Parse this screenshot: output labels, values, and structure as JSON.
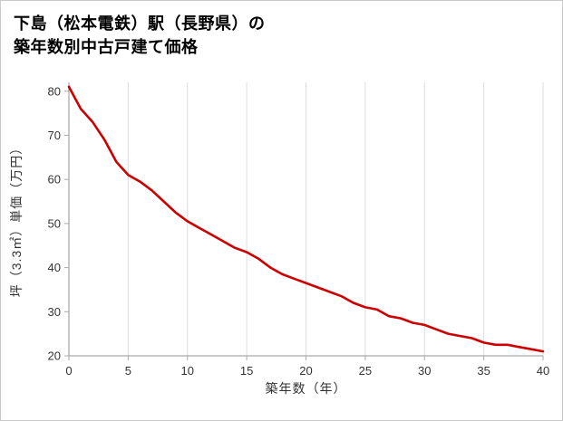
{
  "title": {
    "line1": "下島（松本電鉄）駅（長野県）の",
    "line2": "築年数別中古戸建て価格"
  },
  "chart_data": {
    "type": "line",
    "title": "下島（松本電鉄）駅（長野県）の築年数別中古戸建て価格",
    "xlabel": "築年数（年）",
    "ylabel": "坪（3.3㎡）単価（万円）",
    "x": [
      0,
      1,
      2,
      3,
      4,
      5,
      6,
      7,
      8,
      9,
      10,
      11,
      12,
      13,
      14,
      15,
      16,
      17,
      18,
      19,
      20,
      21,
      22,
      23,
      24,
      25,
      26,
      27,
      28,
      29,
      30,
      31,
      32,
      33,
      34,
      35,
      36,
      37,
      38,
      39,
      40
    ],
    "values": [
      81,
      76,
      73,
      69,
      64,
      61,
      59.5,
      57.5,
      55,
      52.5,
      50.5,
      49,
      47.5,
      46,
      44.5,
      43.5,
      42,
      40,
      38.5,
      37.5,
      36.5,
      35.5,
      34.5,
      33.5,
      32,
      31,
      30.5,
      29,
      28.5,
      27.5,
      27,
      26,
      25,
      24.5,
      24,
      23,
      22.5,
      22.5,
      22,
      21.5,
      21
    ],
    "xticks": [
      0,
      5,
      10,
      15,
      20,
      25,
      30,
      35,
      40
    ],
    "yticks": [
      20,
      30,
      40,
      50,
      60,
      70,
      80
    ],
    "xlim": [
      0,
      40
    ],
    "ylim": [
      20,
      82
    ],
    "line_color": "#cc0000",
    "grid_color": "#dddddd",
    "axis_color": "#aaaaaa",
    "tick_text_color": "#333333",
    "grid": "vertical-only",
    "legend_position": "none"
  }
}
